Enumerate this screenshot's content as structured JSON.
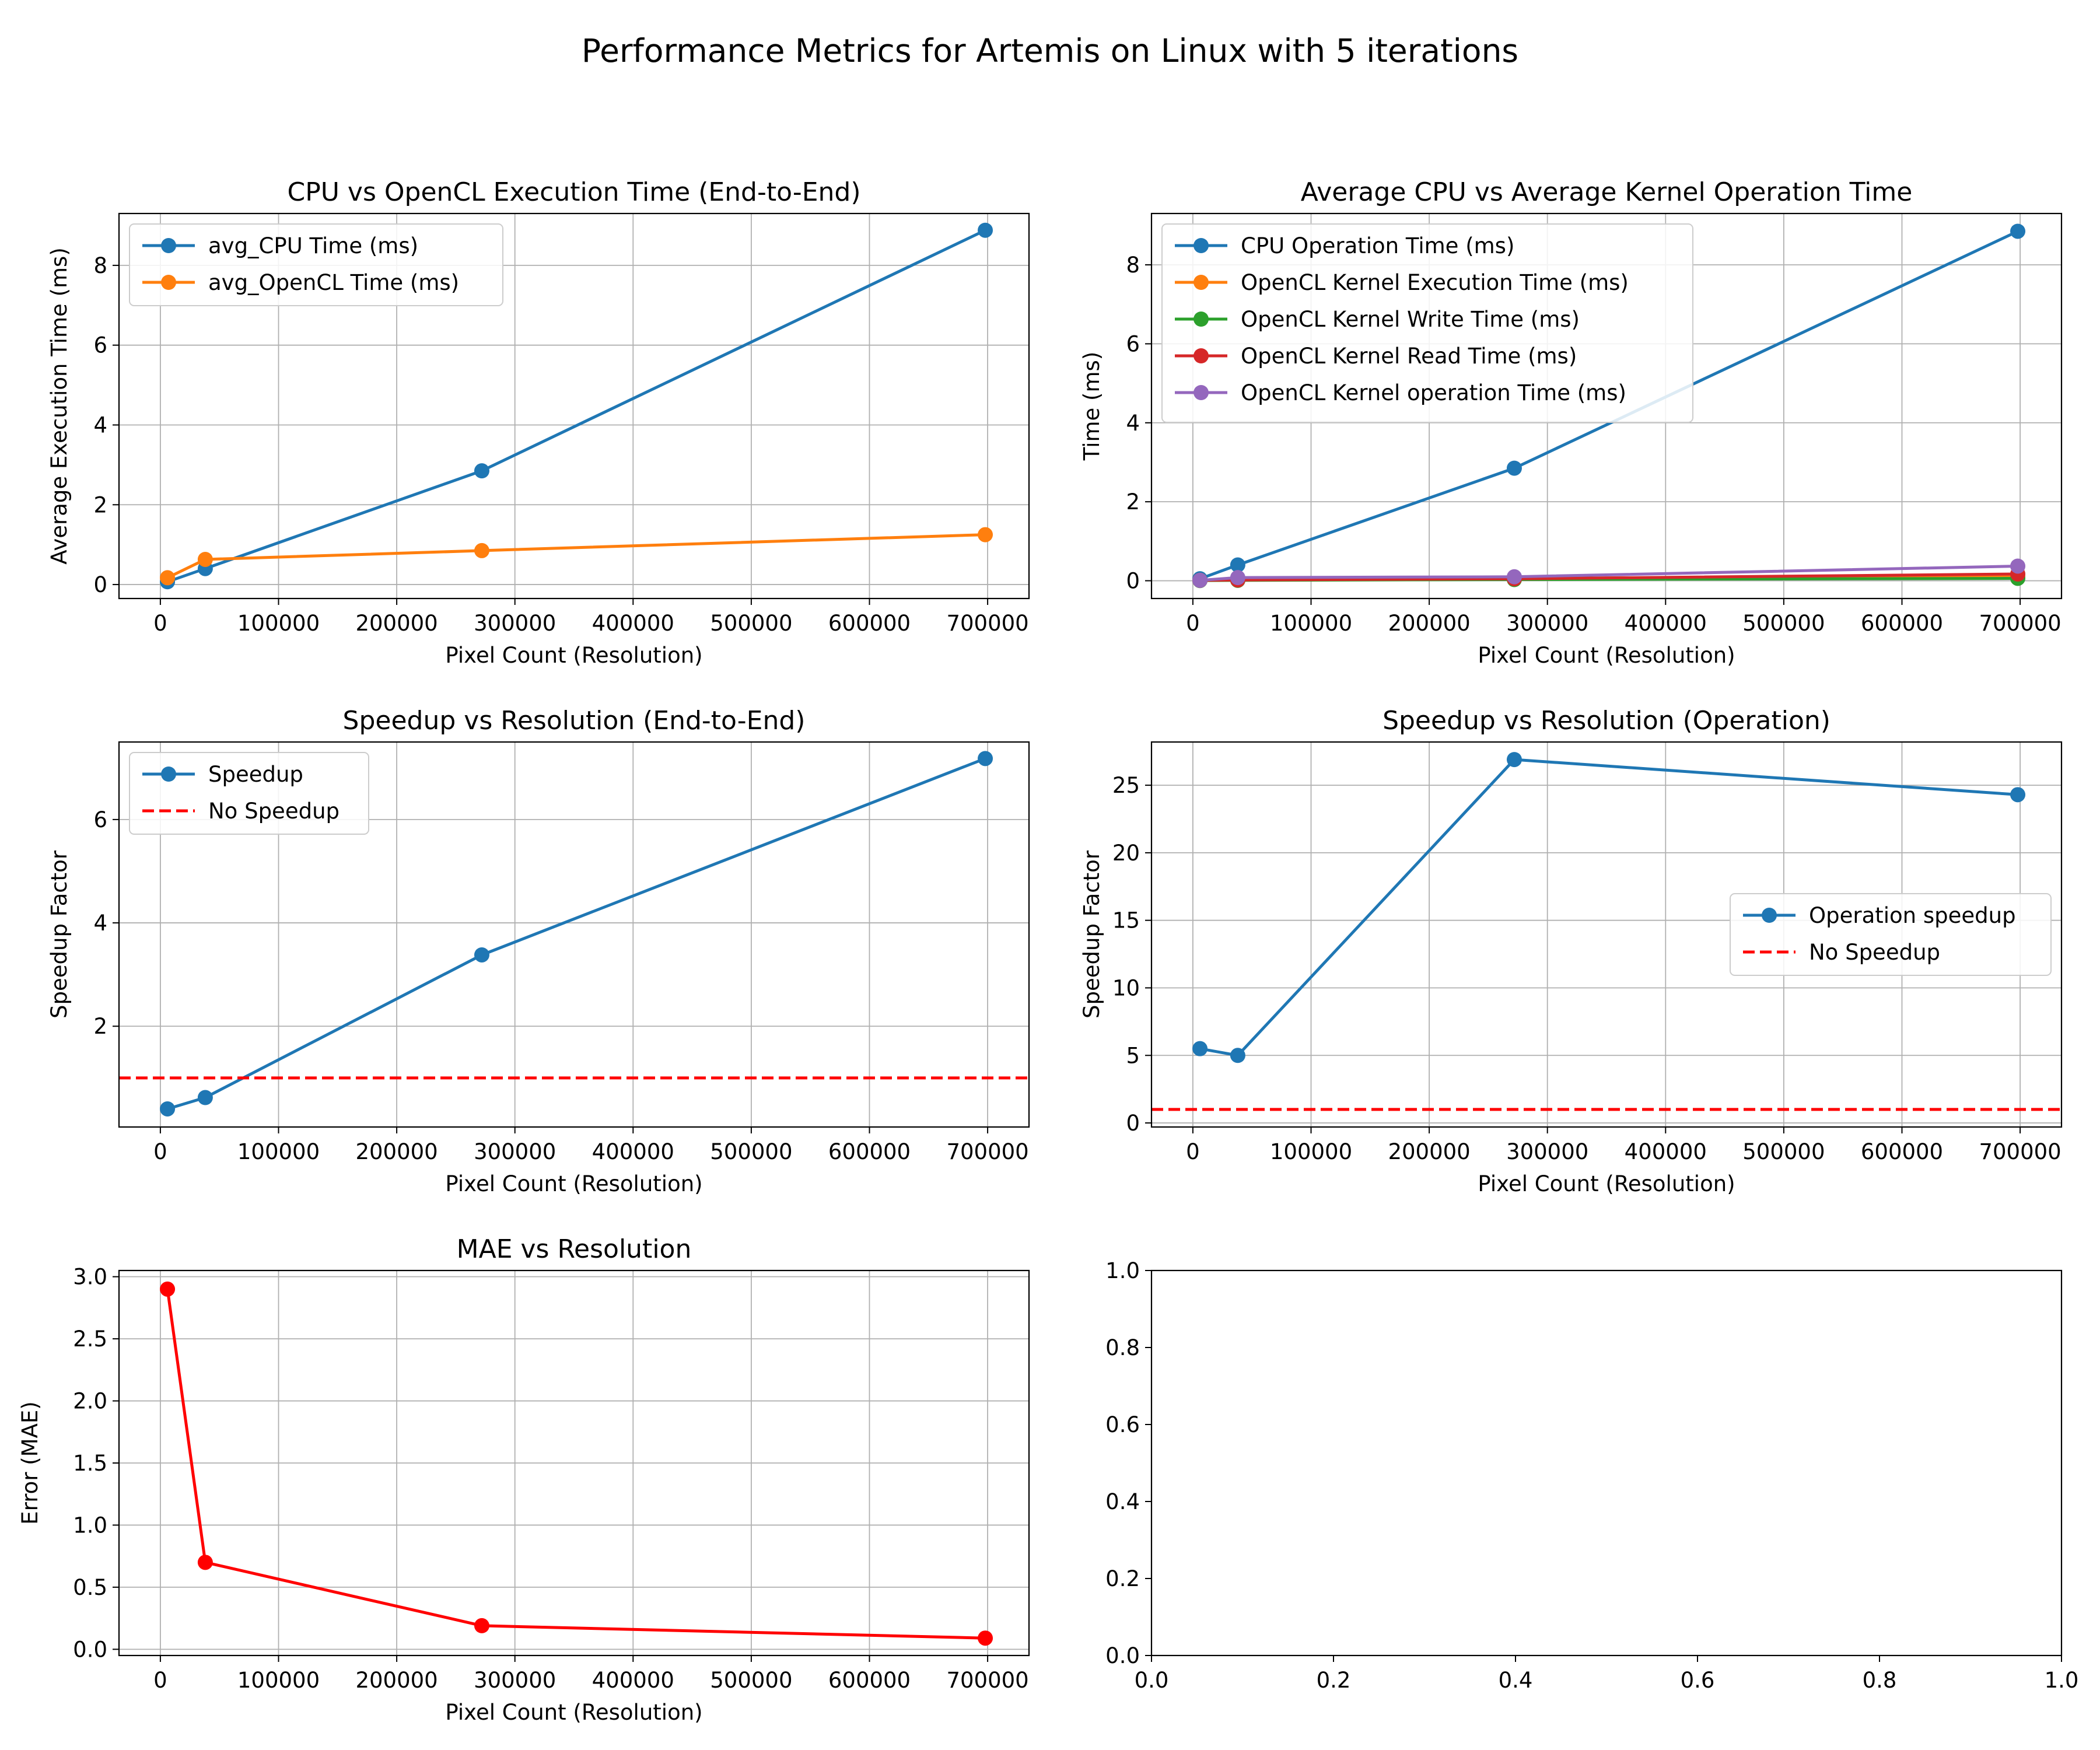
{
  "suptitle": "Performance Metrics for Artemis on Linux with 5 iterations",
  "chart_data": [
    {
      "type": "line",
      "title": "CPU vs OpenCL Execution Time (End-to-End)",
      "xlabel": "Pixel Count (Resolution)",
      "ylabel": "Average Execution Time (ms)",
      "xlim": [
        -35000,
        735000
      ],
      "ylim": [
        -0.35,
        9.3
      ],
      "xticks": [
        0,
        100000,
        200000,
        300000,
        400000,
        500000,
        600000,
        700000
      ],
      "yticks": [
        0,
        2,
        4,
        6,
        8
      ],
      "grid": true,
      "legend_position": "upper left",
      "series": [
        {
          "name": "avg_CPU Time (ms)",
          "color": "#1f77b4",
          "linestyle": "solid",
          "marker": true,
          "x": [
            6000,
            38000,
            272000,
            698000
          ],
          "y": [
            0.07,
            0.4,
            2.85,
            8.88
          ]
        },
        {
          "name": "avg_OpenCL Time (ms)",
          "color": "#ff7f0e",
          "linestyle": "solid",
          "marker": true,
          "x": [
            6000,
            38000,
            272000,
            698000
          ],
          "y": [
            0.17,
            0.63,
            0.85,
            1.25
          ]
        }
      ]
    },
    {
      "type": "line",
      "title": "Average CPU vs Average Kernel Operation Time",
      "xlabel": "Pixel Count (Resolution)",
      "ylabel": "Time (ms)",
      "xlim": [
        -35000,
        735000
      ],
      "ylim": [
        -0.45,
        9.3
      ],
      "xticks": [
        0,
        100000,
        200000,
        300000,
        400000,
        500000,
        600000,
        700000
      ],
      "yticks": [
        0,
        2,
        4,
        6,
        8
      ],
      "grid": true,
      "legend_position": "upper left",
      "series": [
        {
          "name": "CPU Operation Time (ms)",
          "color": "#1f77b4",
          "linestyle": "solid",
          "marker": true,
          "x": [
            6000,
            38000,
            272000,
            698000
          ],
          "y": [
            0.05,
            0.4,
            2.85,
            8.85
          ]
        },
        {
          "name": "OpenCL Kernel Execution Time (ms)",
          "color": "#ff7f0e",
          "linestyle": "solid",
          "marker": true,
          "x": [
            6000,
            38000,
            272000,
            698000
          ],
          "y": [
            0.01,
            0.02,
            0.05,
            0.12
          ]
        },
        {
          "name": "OpenCL Kernel Write Time (ms)",
          "color": "#2ca02c",
          "linestyle": "solid",
          "marker": true,
          "x": [
            6000,
            38000,
            272000,
            698000
          ],
          "y": [
            0.005,
            0.01,
            0.03,
            0.06
          ]
        },
        {
          "name": "OpenCL Kernel Read Time (ms)",
          "color": "#d62728",
          "linestyle": "solid",
          "marker": true,
          "x": [
            6000,
            38000,
            272000,
            698000
          ],
          "y": [
            0.01,
            0.02,
            0.05,
            0.17
          ]
        },
        {
          "name": "OpenCL Kernel operation Time (ms)",
          "color": "#9467bd",
          "linestyle": "solid",
          "marker": true,
          "x": [
            6000,
            38000,
            272000,
            698000
          ],
          "y": [
            0.01,
            0.08,
            0.1,
            0.37
          ]
        }
      ]
    },
    {
      "type": "line",
      "title": "Speedup vs Resolution (End-to-End)",
      "xlabel": "Pixel Count (Resolution)",
      "ylabel": "Speedup Factor",
      "xlim": [
        -35000,
        735000
      ],
      "ylim": [
        0.05,
        7.5
      ],
      "xticks": [
        0,
        100000,
        200000,
        300000,
        400000,
        500000,
        600000,
        700000
      ],
      "yticks": [
        2,
        4,
        6
      ],
      "grid": true,
      "legend_position": "upper left",
      "series": [
        {
          "name": "Speedup",
          "color": "#1f77b4",
          "linestyle": "solid",
          "marker": true,
          "x": [
            6000,
            38000,
            272000,
            698000
          ],
          "y": [
            0.4,
            0.62,
            3.38,
            7.18
          ]
        },
        {
          "name": "No Speedup",
          "color": "#ff0000",
          "linestyle": "dashed",
          "marker": false,
          "hline": 1.0
        }
      ]
    },
    {
      "type": "line",
      "title": "Speedup vs Resolution (Operation)",
      "xlabel": "Pixel Count (Resolution)",
      "ylabel": "Speedup Factor",
      "xlim": [
        -35000,
        735000
      ],
      "ylim": [
        -0.3,
        28.2
      ],
      "xticks": [
        0,
        100000,
        200000,
        300000,
        400000,
        500000,
        600000,
        700000
      ],
      "yticks": [
        0,
        5,
        10,
        15,
        20,
        25
      ],
      "grid": true,
      "legend_position": "center right",
      "series": [
        {
          "name": "Operation speedup",
          "color": "#1f77b4",
          "linestyle": "solid",
          "marker": true,
          "x": [
            6000,
            38000,
            272000,
            698000
          ],
          "y": [
            5.5,
            5.0,
            26.9,
            24.3
          ]
        },
        {
          "name": "No Speedup",
          "color": "#ff0000",
          "linestyle": "dashed",
          "marker": false,
          "hline": 1.0
        }
      ]
    },
    {
      "type": "line",
      "title": "MAE vs Resolution",
      "xlabel": "Pixel Count (Resolution)",
      "ylabel": "Error (MAE)",
      "xlim": [
        -35000,
        735000
      ],
      "ylim": [
        -0.05,
        3.05
      ],
      "xticks": [
        0,
        100000,
        200000,
        300000,
        400000,
        500000,
        600000,
        700000
      ],
      "yticks": [
        0.0,
        0.5,
        1.0,
        1.5,
        2.0,
        2.5,
        3.0
      ],
      "ytick_labels": [
        "0.0",
        "0.5",
        "1.0",
        "1.5",
        "2.0",
        "2.5",
        "3.0"
      ],
      "grid": true,
      "series": [
        {
          "color": "#ff0000",
          "linestyle": "solid",
          "marker": true,
          "x": [
            6000,
            38000,
            272000,
            698000
          ],
          "y": [
            2.9,
            0.7,
            0.19,
            0.09
          ]
        }
      ]
    },
    {
      "type": "line",
      "title": "",
      "xlabel": "",
      "ylabel": "",
      "xlim": [
        0,
        1
      ],
      "ylim": [
        0,
        1
      ],
      "xticks": [
        0.0,
        0.2,
        0.4,
        0.6,
        0.8,
        1.0
      ],
      "xtick_labels": [
        "0.0",
        "0.2",
        "0.4",
        "0.6",
        "0.8",
        "1.0"
      ],
      "yticks": [
        0.0,
        0.2,
        0.4,
        0.6,
        0.8,
        1.0
      ],
      "ytick_labels": [
        "0.0",
        "0.2",
        "0.4",
        "0.6",
        "0.8",
        "1.0"
      ],
      "grid": false,
      "series": []
    }
  ]
}
